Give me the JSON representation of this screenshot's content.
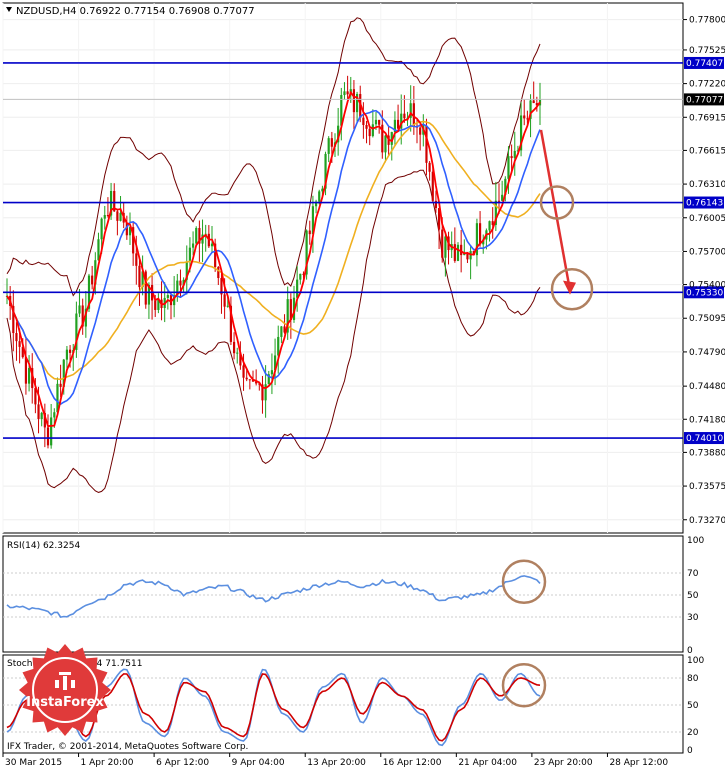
{
  "main_panel": {
    "title": "NZDUSD,H4  0.76922 0.77154 0.76908 0.77077",
    "price_ticks": [
      "0.77800",
      "0.77525",
      "0.77220",
      "0.76915",
      "0.76615",
      "0.76310",
      "0.76005",
      "0.75700",
      "0.75400",
      "0.75095",
      "0.74790",
      "0.74480",
      "0.74180",
      "0.73880",
      "0.73575",
      "0.73270"
    ],
    "levels": [
      {
        "value": 0.77407,
        "label": "0.77407"
      },
      {
        "value": 0.76143,
        "label": "0.76143"
      },
      {
        "value": 0.7533,
        "label": "0.75330"
      },
      {
        "value": 0.7401,
        "label": "0.74010"
      }
    ],
    "current_price": {
      "value": 0.77077,
      "label": "0.77077"
    }
  },
  "rsi_panel": {
    "title": "RSI(14) 62.3254",
    "ticks": [
      "100",
      "70",
      "50",
      "30",
      "0"
    ]
  },
  "stoch_panel": {
    "title": "Stoch(5,3,3) 60.7374 71.7511",
    "ticks": [
      "100",
      "80",
      "50",
      "20",
      "0"
    ]
  },
  "x_axis": {
    "labels": [
      "30 Mar 2015",
      "1 Apr 20:00",
      "6 Apr 12:00",
      "9 Apr 04:00",
      "13 Apr 20:00",
      "16 Apr 12:00",
      "21 Apr 04:00",
      "23 Apr 20:00",
      "28 Apr 12:00"
    ]
  },
  "footer": {
    "copyright": "IFX Trader, © 2001-2014, MetaQuotes Software Corp.",
    "watermark": "InstaForex"
  },
  "colors": {
    "level_line": "#0000c8",
    "candle_bull": "#20a020",
    "candle_bear": "#d00000",
    "ma_fast": "#ff0000",
    "ma_mid": "#3060ff",
    "ma_slow": "#f0b020",
    "bollinger": "#700000",
    "rsi": "#5b8fe0",
    "stoch_main": "#5b8fe0",
    "stoch_signal": "#d00000",
    "annotation": "#b08060",
    "arrow": "#e03030",
    "badge": "#e03a3a"
  },
  "chart_data": [
    {
      "type": "candlestick",
      "title": "NZDUSD,H4",
      "ohlc_last": {
        "open": 0.76922,
        "high": 0.77154,
        "low": 0.76908,
        "close": 0.77077
      },
      "ylim": [
        0.7315,
        0.7795
      ],
      "x_range": [
        "30 Mar 2015",
        "28 Apr 2015"
      ],
      "close_path": [
        [
          "30 Mar 2015",
          0.753
        ],
        [
          "31 Mar 2015",
          0.746
        ],
        [
          "1 Apr 2015",
          0.7401
        ],
        [
          "1 Apr 2015",
          0.748
        ],
        [
          "2 Apr 2015",
          0.752
        ],
        [
          "3 Apr 2015",
          0.7614
        ],
        [
          "4 Apr 2015",
          0.76
        ],
        [
          "6 Apr 2015",
          0.753
        ],
        [
          "7 Apr 2015",
          0.752
        ],
        [
          "8 Apr 2015",
          0.756
        ],
        [
          "9 Apr 2015",
          0.759
        ],
        [
          "10 Apr 2015",
          0.753
        ],
        [
          "12 Apr 2015",
          0.744
        ],
        [
          "13 Apr 2015",
          0.745
        ],
        [
          "14 Apr 2015",
          0.75
        ],
        [
          "15 Apr 2015",
          0.756
        ],
        [
          "16 Apr 2015",
          0.764
        ],
        [
          "17 Apr 2015",
          0.771
        ],
        [
          "18 Apr 2015",
          0.77
        ],
        [
          "20 Apr 2015",
          0.767
        ],
        [
          "21 Apr 2015",
          0.77
        ],
        [
          "22 Apr 2015",
          0.769
        ],
        [
          "22 Apr 2015",
          0.758
        ],
        [
          "23 Apr 2015",
          0.756
        ],
        [
          "24 Apr 2015",
          0.759
        ],
        [
          "25 Apr 2015",
          0.762
        ],
        [
          "27 Apr 2015",
          0.768
        ],
        [
          "28 Apr 2015",
          0.7708
        ]
      ],
      "levels": [
        0.77407,
        0.76143,
        0.7533,
        0.7401
      ],
      "forecast_arrow": {
        "from": 0.768,
        "to": 0.754
      },
      "series": [
        {
          "name": "",
          "kind": "moving average fast"
        },
        {
          "name": "",
          "kind": "moving average medium"
        },
        {
          "name": "",
          "kind": "moving average slow"
        },
        {
          "name": "",
          "kind": "bollinger bands"
        }
      ]
    },
    {
      "type": "line",
      "title": "RSI(14) 62.3254",
      "ylim": [
        0,
        100
      ],
      "y_ticks": [
        100,
        70,
        50,
        30,
        0
      ],
      "last_value": 62.3254,
      "values": [
        40,
        38,
        35,
        30,
        42,
        48,
        60,
        62,
        60,
        50,
        55,
        58,
        52,
        45,
        50,
        55,
        60,
        62,
        58,
        62,
        60,
        55,
        45,
        48,
        50,
        58,
        68,
        62
      ]
    },
    {
      "type": "line",
      "title": "Stoch(5,3,3)",
      "ylim": [
        0,
        100
      ],
      "y_ticks": [
        100,
        80,
        50,
        20,
        0
      ],
      "series": [
        {
          "name": "",
          "last_value": 60.7374,
          "values": [
            20,
            60,
            85,
            40,
            10,
            70,
            90,
            30,
            15,
            80,
            60,
            20,
            10,
            90,
            40,
            20,
            70,
            85,
            30,
            80,
            60,
            40,
            5,
            50,
            85,
            55,
            85,
            60
          ]
        },
        {
          "name": "",
          "last_value": 71.7511,
          "values": [
            25,
            55,
            80,
            50,
            15,
            60,
            85,
            40,
            20,
            75,
            65,
            25,
            15,
            85,
            45,
            25,
            65,
            80,
            40,
            75,
            60,
            45,
            10,
            45,
            80,
            60,
            80,
            72
          ]
        }
      ]
    }
  ]
}
